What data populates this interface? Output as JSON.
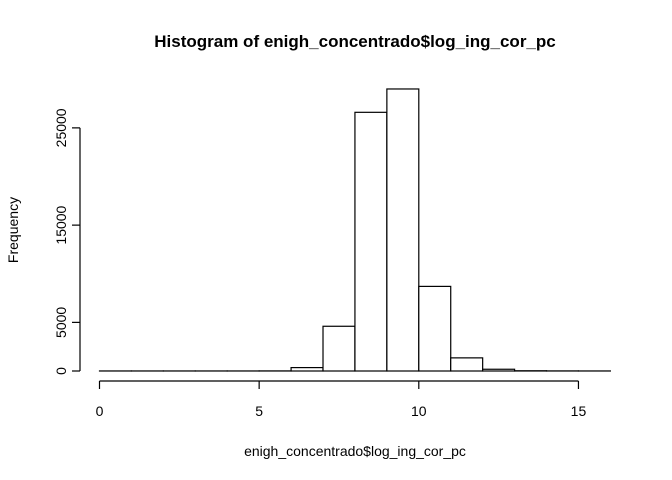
{
  "chart_data": {
    "type": "bar",
    "title": "Histogram of enigh_concentrado$log_ing_cor_pc",
    "xlabel": "enigh_concentrado$log_ing_cor_pc",
    "ylabel": "Frequency",
    "x_ticks": [
      0,
      5,
      10,
      15
    ],
    "y_ticks": [
      0,
      5000,
      15000,
      25000
    ],
    "xlim": [
      0,
      16
    ],
    "ylim": [
      0,
      29000
    ],
    "bin_edges": [
      0,
      1,
      2,
      3,
      4,
      5,
      6,
      7,
      8,
      9,
      10,
      11,
      12,
      13,
      14,
      15,
      16
    ],
    "values": [
      5,
      5,
      5,
      5,
      5,
      10,
      350,
      4600,
      26600,
      29000,
      8700,
      1350,
      180,
      25,
      10,
      5
    ]
  }
}
